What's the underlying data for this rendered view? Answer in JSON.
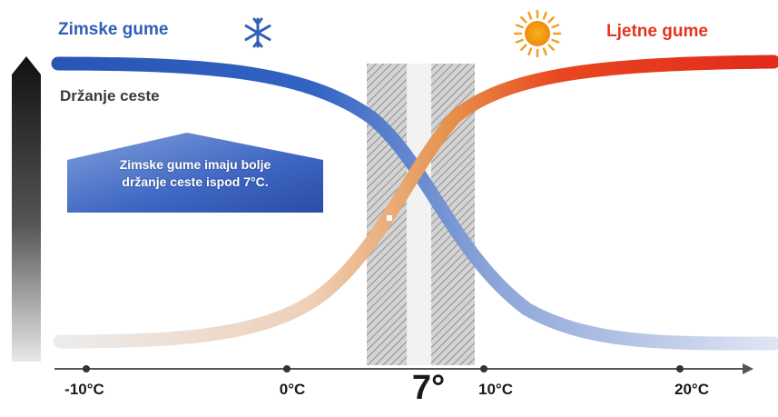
{
  "winter": {
    "title": "Zimske gume",
    "icon": "snowflake-icon",
    "color": "#2f5fb8"
  },
  "summer": {
    "title": "Ljetne gume",
    "icon": "sun-icon",
    "color": "#e5341d"
  },
  "axis": {
    "y_label": "Držanje ceste",
    "ticks": [
      {
        "label": "-10°C",
        "value": -10
      },
      {
        "label": "0°C",
        "value": 0
      },
      {
        "label": "10°C",
        "value": 10
      },
      {
        "label": "20°C",
        "value": 20
      }
    ],
    "threshold_label": "7°",
    "threshold_value": 7
  },
  "callout": {
    "line1": "Zimske gume imaju bolje",
    "line2": "držanje ceste ispod 7°C."
  }
}
